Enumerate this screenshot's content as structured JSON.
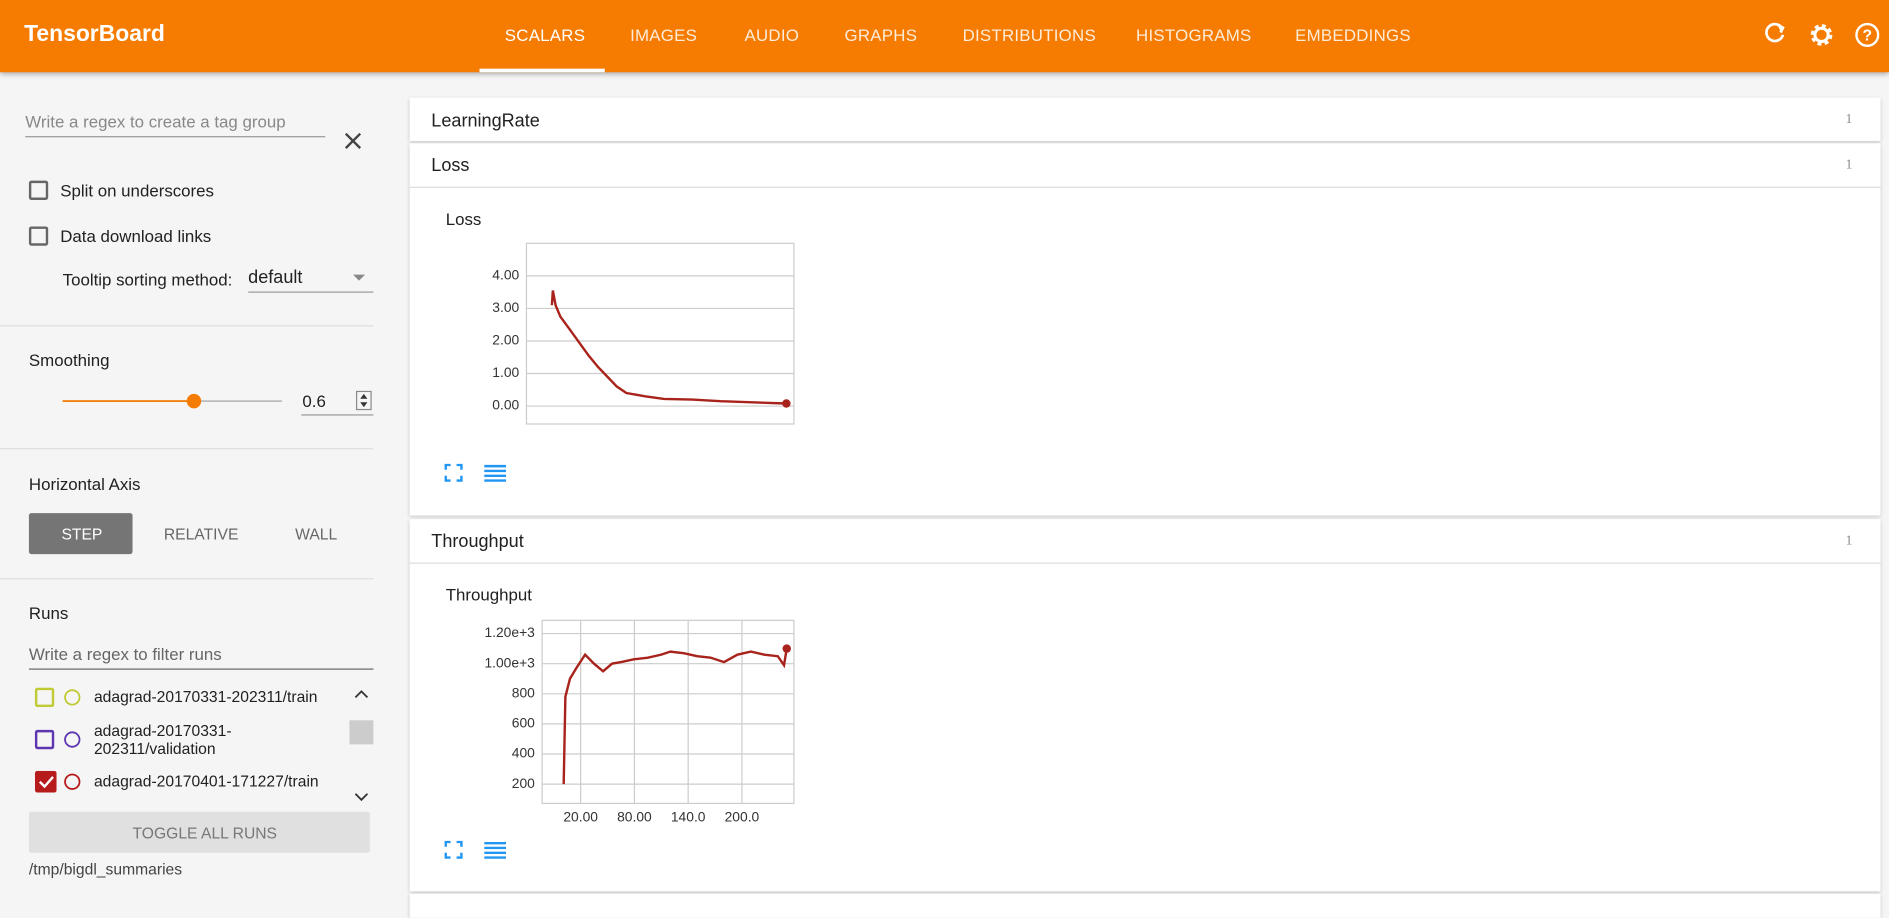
{
  "header": {
    "title": "TensorBoard",
    "tabs": [
      "SCALARS",
      "IMAGES",
      "AUDIO",
      "GRAPHS",
      "DISTRIBUTIONS",
      "HISTOGRAMS",
      "EMBEDDINGS"
    ]
  },
  "sidebar": {
    "tag_group_placeholder": "Write a regex to create a tag group",
    "split_on_underscores": "Split on underscores",
    "data_download_links": "Data download links",
    "tooltip_label": "Tooltip sorting method:",
    "tooltip_value": "default",
    "smoothing_label": "Smoothing",
    "smoothing_value": 0.6,
    "horizontal_axis_label": "Horizontal Axis",
    "axis_buttons": [
      "STEP",
      "RELATIVE",
      "WALL"
    ],
    "runs_label": "Runs",
    "runs_filter_placeholder": "Write a regex to filter runs",
    "runs": [
      "adagrad-20170331-202311/train",
      "adagrad-20170331-202311/validation",
      "adagrad-20170401-171227/train"
    ],
    "toggle_all": "TOGGLE ALL RUNS",
    "logdir": "/tmp/bigdl_summaries"
  },
  "sections": [
    {
      "name": "LearningRate",
      "count": 1
    },
    {
      "name": "Loss",
      "count": 1
    },
    {
      "name": "Throughput",
      "count": 1
    }
  ],
  "charts": [
    {
      "type": "line",
      "title": "Loss",
      "color": "#a8231b",
      "x": [
        1,
        2,
        5,
        10,
        20,
        30,
        40,
        50,
        60,
        70,
        80,
        100,
        120,
        150,
        180,
        210,
        250
      ],
      "values": [
        3.1,
        3.55,
        3.1,
        2.75,
        2.35,
        1.95,
        1.55,
        1.2,
        0.9,
        0.6,
        0.4,
        0.3,
        0.22,
        0.2,
        0.15,
        0.12,
        0.08
      ],
      "xlim": [
        -26,
        258
      ],
      "ylim": [
        -0.55,
        5.0
      ],
      "yticks": [
        {
          "value": 0,
          "label": "0.00"
        },
        {
          "value": 1,
          "label": "1.00"
        },
        {
          "value": 2,
          "label": "2.00"
        },
        {
          "value": 3,
          "label": "3.00"
        },
        {
          "value": 4,
          "label": "4.00"
        }
      ],
      "grid": true
    },
    {
      "type": "line",
      "title": "Throughput",
      "color": "#a8231b",
      "x": [
        1,
        3,
        8,
        15,
        25,
        35,
        45,
        55,
        65,
        80,
        95,
        110,
        120,
        135,
        150,
        165,
        180,
        195,
        210,
        225,
        240,
        247,
        250
      ],
      "values": [
        200,
        780,
        900,
        970,
        1060,
        1000,
        950,
        1000,
        1010,
        1030,
        1040,
        1060,
        1080,
        1070,
        1050,
        1040,
        1010,
        1060,
        1080,
        1060,
        1050,
        990,
        1100
      ],
      "xlim": [
        -23,
        258
      ],
      "ylim": [
        72,
        1288
      ],
      "xticks": [
        {
          "value": 20,
          "label": "20.00"
        },
        {
          "value": 80,
          "label": "80.00"
        },
        {
          "value": 140,
          "label": "140.0"
        },
        {
          "value": 200,
          "label": "200.0"
        }
      ],
      "yticks": [
        200,
        400,
        600,
        800,
        {
          "value": 1000,
          "label": "1.00e+3"
        },
        {
          "value": 1200,
          "label": "1.20e+3"
        }
      ],
      "grid": true
    }
  ]
}
